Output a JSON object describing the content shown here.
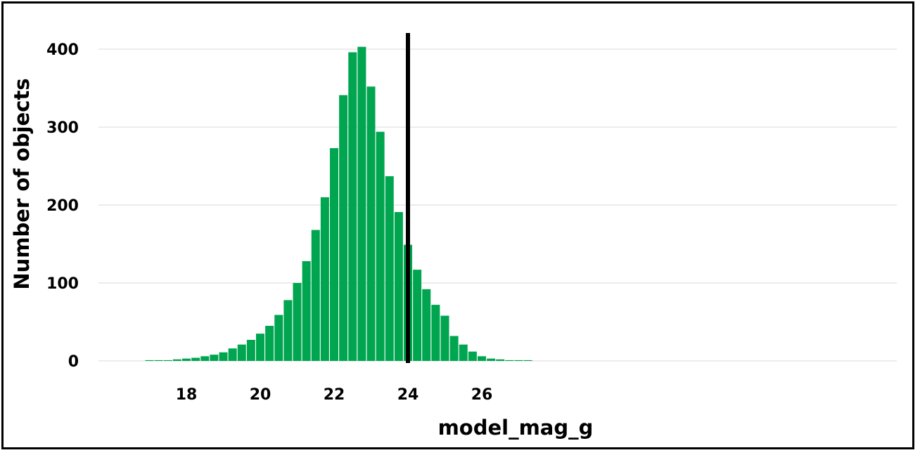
{
  "chart_data": {
    "type": "bar",
    "title": "",
    "xlabel": "model_mag_g",
    "ylabel": "Number of objects",
    "xlim": [
      16.85,
      27.35
    ],
    "ylim": [
      0,
      420
    ],
    "x_ticks": [
      18,
      20,
      22,
      24,
      26
    ],
    "y_ticks": [
      0,
      100,
      200,
      300,
      400
    ],
    "grid": "horizontal",
    "bar_color": "#00A550",
    "x": [
      17.0,
      17.25,
      17.5,
      17.75,
      18.0,
      18.25,
      18.5,
      18.75,
      19.0,
      19.25,
      19.5,
      19.75,
      20.0,
      20.25,
      20.5,
      20.75,
      21.0,
      21.25,
      21.5,
      21.75,
      22.0,
      22.25,
      22.5,
      22.75,
      23.0,
      23.25,
      23.5,
      23.75,
      24.0,
      24.25,
      24.5,
      24.75,
      25.0,
      25.25,
      25.5,
      25.75,
      26.0,
      26.25,
      26.5,
      26.75,
      27.0,
      27.25
    ],
    "values": [
      1,
      1,
      1,
      2,
      3,
      4,
      6,
      8,
      11,
      16,
      21,
      27,
      35,
      45,
      59,
      78,
      100,
      128,
      168,
      210,
      273,
      341,
      396,
      403,
      352,
      294,
      237,
      191,
      149,
      117,
      92,
      72,
      58,
      32,
      21,
      12,
      6,
      3,
      2,
      1,
      1,
      1
    ],
    "vertical_line": {
      "x": 24.0,
      "color": "#000000"
    }
  }
}
